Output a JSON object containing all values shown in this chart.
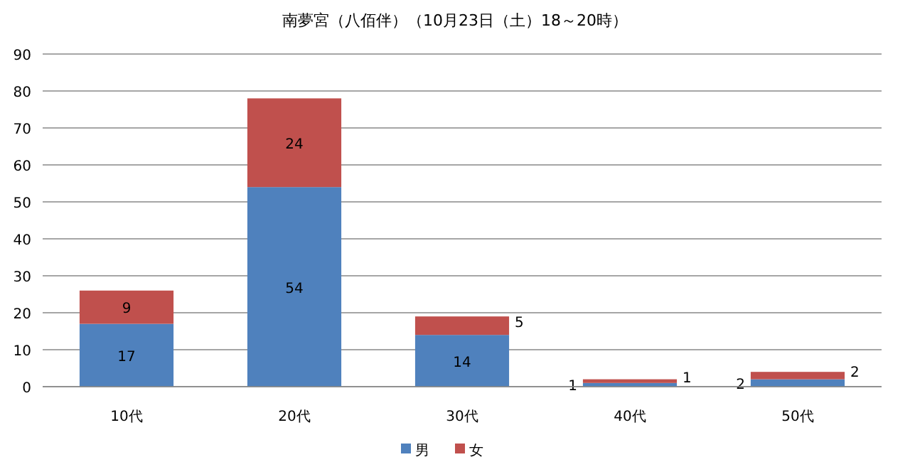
{
  "chart_data": {
    "type": "bar",
    "stacked": true,
    "title": "南夢宮（八佰伴）（10月23日（土）18～20時）",
    "categories": [
      "10代",
      "20代",
      "30代",
      "40代",
      "50代"
    ],
    "series": [
      {
        "name": "男",
        "color": "#4f81bd",
        "values": [
          17,
          54,
          14,
          1,
          2
        ]
      },
      {
        "name": "女",
        "color": "#c0504d",
        "values": [
          9,
          24,
          5,
          1,
          2
        ]
      }
    ],
    "ylim": [
      0,
      90
    ],
    "yticks": [
      0,
      10,
      20,
      30,
      40,
      50,
      60,
      70,
      80,
      90
    ],
    "grid": "y",
    "legend": "bottom",
    "data_labels": true
  }
}
